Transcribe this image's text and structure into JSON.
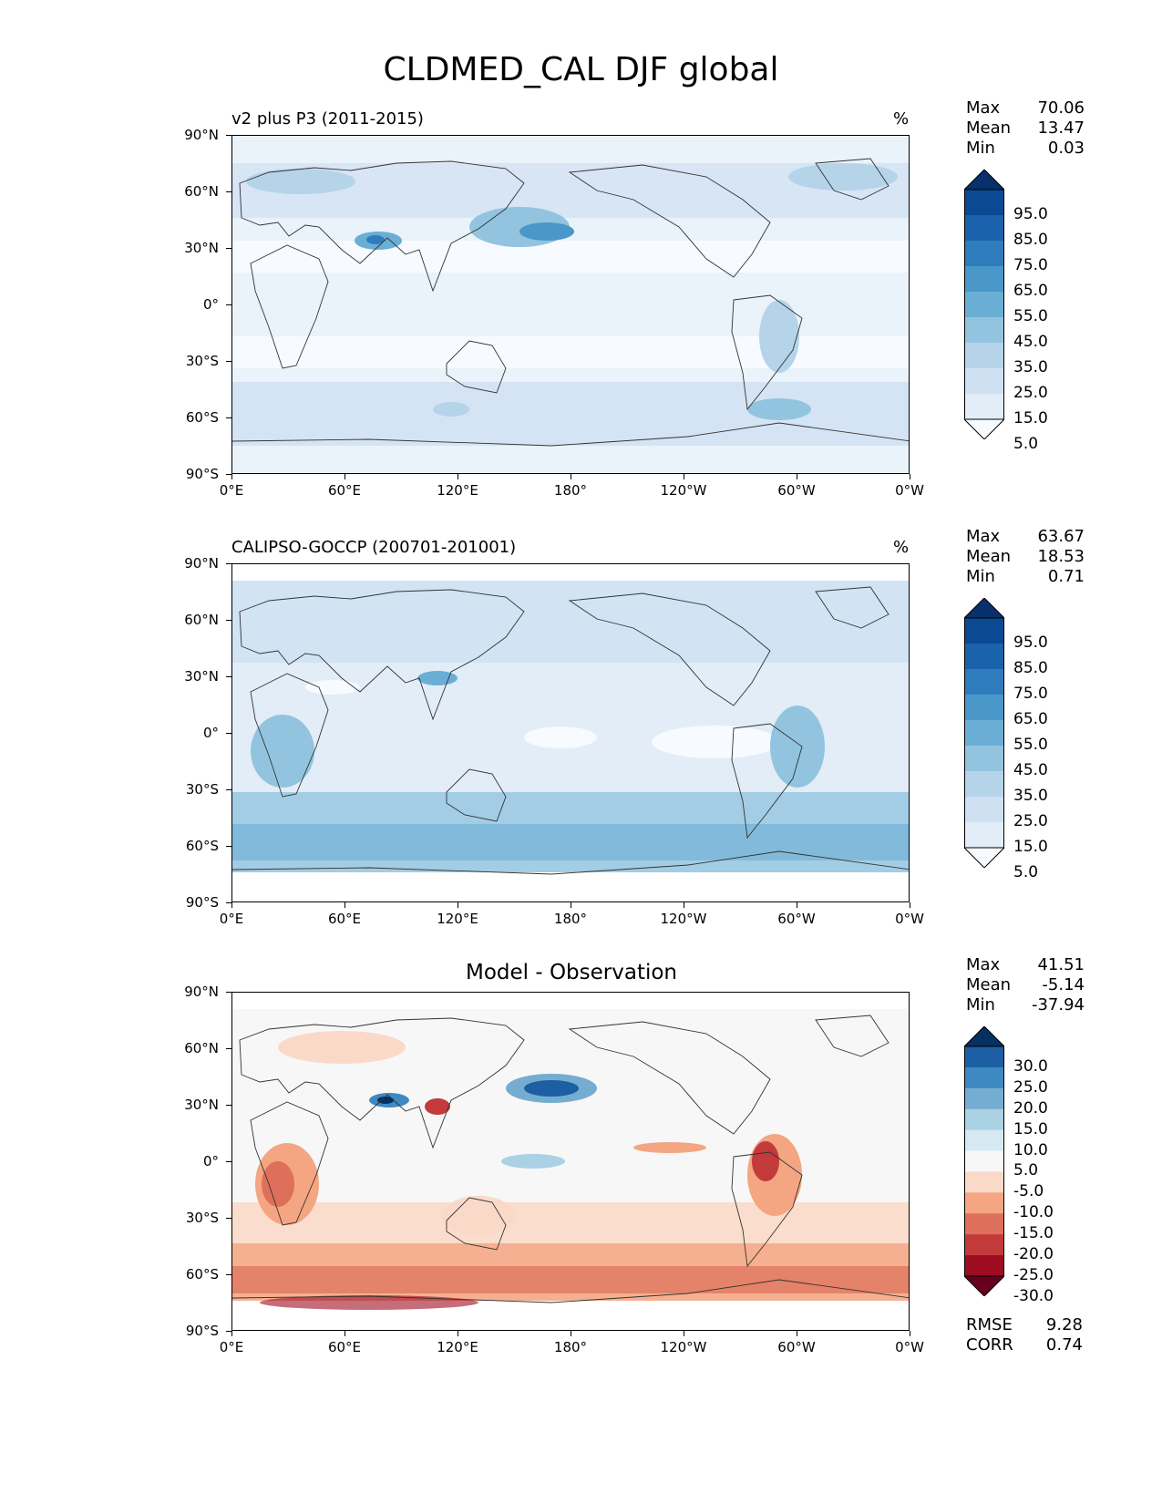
{
  "page_title": "CLDMED_CAL DJF global",
  "lat_ticks": [
    "90°N",
    "60°N",
    "30°N",
    "0°",
    "30°S",
    "60°S",
    "90°S"
  ],
  "lon_ticks": [
    "0°E",
    "60°E",
    "120°E",
    "180°",
    "120°W",
    "60°W",
    "0°W"
  ],
  "panels": [
    {
      "title": "v2 plus P3 (2011-2015)",
      "units": "%",
      "stats": {
        "max_label": "Max",
        "max": "70.06",
        "mean_label": "Mean",
        "mean": "13.47",
        "min_label": "Min",
        "min": "0.03"
      },
      "colorbar": {
        "levels": [
          "95.0",
          "85.0",
          "75.0",
          "65.0",
          "55.0",
          "45.0",
          "35.0",
          "25.0",
          "15.0",
          "5.0"
        ],
        "colors": [
          "#08306b",
          "#0b4a92",
          "#1a62ab",
          "#2f7cbd",
          "#4a97c9",
          "#6aaed6",
          "#93c4df",
          "#b5d4e9",
          "#cee0f2",
          "#e2edf8",
          "#f7fbff"
        ]
      }
    },
    {
      "title": "CALIPSO-GOCCP (200701-201001)",
      "units": "%",
      "stats": {
        "max_label": "Max",
        "max": "63.67",
        "mean_label": "Mean",
        "mean": "18.53",
        "min_label": "Min",
        "min": "0.71"
      },
      "colorbar": {
        "levels": [
          "95.0",
          "85.0",
          "75.0",
          "65.0",
          "55.0",
          "45.0",
          "35.0",
          "25.0",
          "15.0",
          "5.0"
        ],
        "colors": [
          "#08306b",
          "#0b4a92",
          "#1a62ab",
          "#2f7cbd",
          "#4a97c9",
          "#6aaed6",
          "#93c4df",
          "#b5d4e9",
          "#cee0f2",
          "#e2edf8",
          "#f7fbff"
        ]
      }
    },
    {
      "title": "Model - Observation",
      "units": "",
      "stats": {
        "max_label": "Max",
        "max": "41.51",
        "mean_label": "Mean",
        "mean": "-5.14",
        "min_label": "Min",
        "min": "-37.94"
      },
      "colorbar": {
        "levels": [
          "30.0",
          "25.0",
          "20.0",
          "15.0",
          "10.0",
          "5.0",
          "-5.0",
          "-10.0",
          "-15.0",
          "-20.0",
          "-25.0",
          "-30.0"
        ],
        "colors": [
          "#053061",
          "#1d5fa4",
          "#3d89c1",
          "#74add1",
          "#abd1e5",
          "#d6e9f2",
          "#f7f7f7",
          "#fbd9c9",
          "#f4a582",
          "#de6f5a",
          "#c33a3a",
          "#9e0c22",
          "#67001f"
        ]
      },
      "metrics": {
        "rmse_label": "RMSE",
        "rmse": "9.28",
        "corr_label": "CORR",
        "corr": "0.74"
      }
    }
  ],
  "chart_data": [
    {
      "type": "heatmap",
      "title": "v2 plus P3 (2011-2015)",
      "units": "%",
      "projection": "equirectangular",
      "xlim": [
        0,
        360
      ],
      "ylim": [
        -90,
        90
      ],
      "max": 70.06,
      "mean": 13.47,
      "min": 0.03,
      "colorbar_levels": [
        5,
        15,
        25,
        35,
        45,
        55,
        65,
        75,
        85,
        95
      ]
    },
    {
      "type": "heatmap",
      "title": "CALIPSO-GOCCP (200701-201001)",
      "units": "%",
      "projection": "equirectangular",
      "xlim": [
        0,
        360
      ],
      "ylim": [
        -90,
        90
      ],
      "max": 63.67,
      "mean": 18.53,
      "min": 0.71,
      "colorbar_levels": [
        5,
        15,
        25,
        35,
        45,
        55,
        65,
        75,
        85,
        95
      ]
    },
    {
      "type": "heatmap",
      "title": "Model - Observation",
      "projection": "equirectangular",
      "xlim": [
        0,
        360
      ],
      "ylim": [
        -90,
        90
      ],
      "max": 41.51,
      "mean": -5.14,
      "min": -37.94,
      "rmse": 9.28,
      "corr": 0.74,
      "colorbar_levels": [
        -30,
        -25,
        -20,
        -15,
        -10,
        -5,
        5,
        10,
        15,
        20,
        25,
        30
      ]
    }
  ]
}
